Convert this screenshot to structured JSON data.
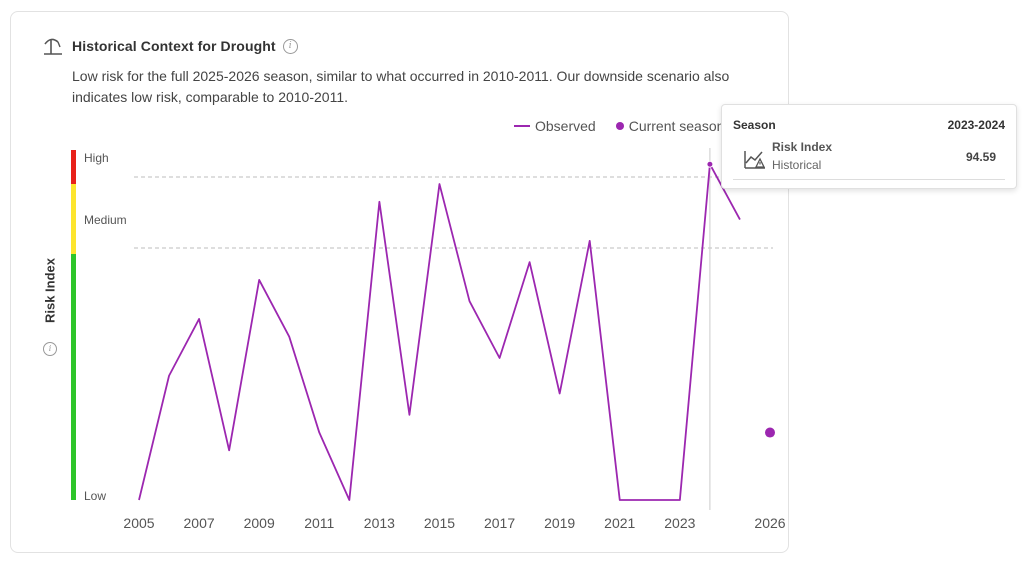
{
  "card": {
    "title": "Historical Context for Drought",
    "description": "Low risk for the full 2025-2026 season, similar to what occurred in 2010-2011. Our downside scenario also indicates low risk, comparable to 2010-2011.",
    "title_icon": "drought-icon",
    "info_icon": "info-icon"
  },
  "legend": {
    "observed": "Observed",
    "current": "Current season"
  },
  "risk_levels": {
    "high": "High",
    "medium": "Medium",
    "low": "Low"
  },
  "colors": {
    "series": "#9c27b0",
    "high": "#e8211a",
    "medium": "#fde52e",
    "low": "#2ec52a",
    "threshold": "#bdbdbd"
  },
  "tooltip": {
    "header_label": "Season",
    "header_value": "2023-2024",
    "metric_name": "Risk Index",
    "metric_sub": "Historical",
    "metric_value": "94.59",
    "icon": "chart-warning-icon"
  },
  "chart_data": {
    "type": "line",
    "ylabel": "Risk Index",
    "ylim": [
      0,
      100
    ],
    "thresholds": [
      {
        "name": "High",
        "value": 91
      },
      {
        "name": "Medium",
        "value": 71
      }
    ],
    "x_ticks": [
      2005,
      2007,
      2009,
      2011,
      2013,
      2015,
      2017,
      2019,
      2021,
      2023,
      2026
    ],
    "hover_x": 2024,
    "series": [
      {
        "name": "Observed",
        "x": [
          2005,
          2006,
          2007,
          2008,
          2009,
          2010,
          2011,
          2012,
          2013,
          2014,
          2015,
          2016,
          2017,
          2018,
          2019,
          2020,
          2021,
          2022,
          2023,
          2024,
          2025
        ],
        "y": [
          0,
          35,
          51,
          14,
          62,
          46,
          19,
          0,
          84,
          24,
          89,
          56,
          40,
          67,
          30,
          73,
          0,
          0,
          0,
          94.59,
          79
        ]
      },
      {
        "name": "Current season",
        "x": [
          2026
        ],
        "y": [
          19
        ]
      }
    ]
  }
}
